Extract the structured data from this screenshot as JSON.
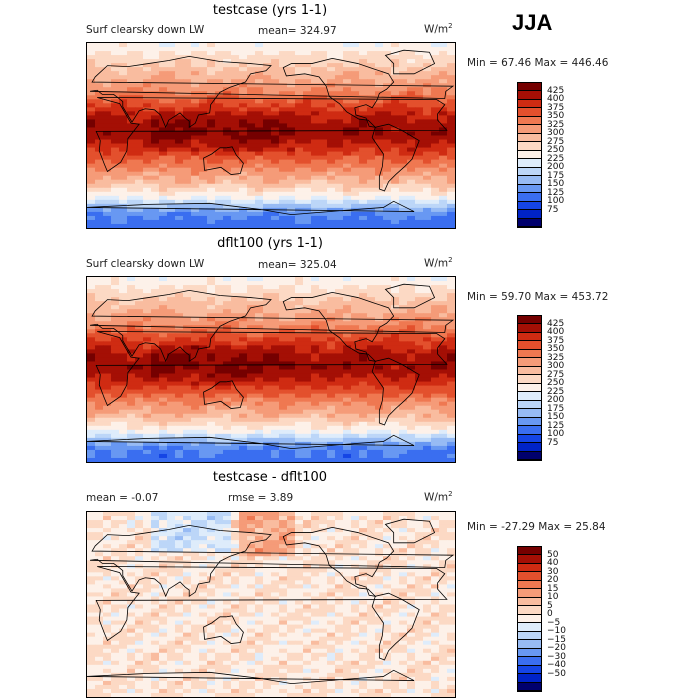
{
  "season": "JJA",
  "colors": {
    "abs_scale": [
      "#00006d",
      "#0023c7",
      "#1545e5",
      "#3a6ef0",
      "#6898f2",
      "#97bbf4",
      "#bcd6f8",
      "#deecfb",
      "#fdf1e9",
      "#fcd9c4",
      "#f9bc9f",
      "#f59b78",
      "#ef7851",
      "#e3502d",
      "#cf2b12",
      "#a40f05",
      "#750000"
    ],
    "diff_scale": [
      "#00006d",
      "#0023c7",
      "#1545e5",
      "#3a6ef0",
      "#6898f2",
      "#97bbf4",
      "#bcd6f8",
      "#deecfb",
      "#fdf1e9",
      "#fcd9c4",
      "#f9bc9f",
      "#f59b78",
      "#ef7851",
      "#e3502d",
      "#cf2b12",
      "#a40f05",
      "#750000"
    ],
    "land_outline": "#000000"
  },
  "panels": [
    {
      "title": "testcase (yrs 1-1)",
      "variable": "Surf clearsky down LW",
      "stat": "mean=  324.97",
      "units_base": "W/m",
      "units_exp": "2",
      "minmax": "Min =  67.46 Max = 446.46",
      "kind": "abs",
      "chart_data": {
        "type": "heatmap",
        "title": "testcase (yrs 1-1)",
        "variable": "Surf clearsky down LW",
        "units": "W/m2",
        "mean": 324.97,
        "min": 67.46,
        "max": 446.46,
        "levels": [
          75,
          100,
          125,
          150,
          175,
          200,
          225,
          250,
          275,
          300,
          325,
          350,
          375,
          400,
          425
        ],
        "latitude_profile": [
          [
            90,
            230
          ],
          [
            75,
            260
          ],
          [
            60,
            290
          ],
          [
            45,
            320
          ],
          [
            30,
            370
          ],
          [
            15,
            410
          ],
          [
            0,
            420
          ],
          [
            -15,
            380
          ],
          [
            -30,
            330
          ],
          [
            -45,
            290
          ],
          [
            -60,
            230
          ],
          [
            -75,
            130
          ],
          [
            -90,
            110
          ]
        ]
      }
    },
    {
      "title": "dflt100 (yrs 1-1)",
      "variable": "Surf clearsky down LW",
      "stat": "mean=  325.04",
      "units_base": "W/m",
      "units_exp": "2",
      "minmax": "Min =  59.70 Max = 453.72",
      "kind": "abs",
      "chart_data": {
        "type": "heatmap",
        "title": "dflt100 (yrs 1-1)",
        "variable": "Surf clearsky down LW",
        "units": "W/m2",
        "mean": 325.04,
        "min": 59.7,
        "max": 453.72,
        "levels": [
          75,
          100,
          125,
          150,
          175,
          200,
          225,
          250,
          275,
          300,
          325,
          350,
          375,
          400,
          425
        ],
        "latitude_profile": [
          [
            90,
            230
          ],
          [
            75,
            260
          ],
          [
            60,
            290
          ],
          [
            45,
            320
          ],
          [
            30,
            370
          ],
          [
            15,
            410
          ],
          [
            0,
            420
          ],
          [
            -15,
            380
          ],
          [
            -30,
            330
          ],
          [
            -45,
            290
          ],
          [
            -60,
            230
          ],
          [
            -75,
            130
          ],
          [
            -90,
            110
          ]
        ]
      }
    },
    {
      "title": "testcase - dflt100",
      "stat_mean": "mean =   -0.07",
      "stat_rmse": "rmse =    3.89",
      "units_base": "W/m",
      "units_exp": "2",
      "minmax": "Min = -27.29 Max =  25.84",
      "kind": "diff",
      "chart_data": {
        "type": "heatmap",
        "title": "testcase - dflt100",
        "units": "W/m2",
        "mean": -0.07,
        "rmse": 3.89,
        "min": -27.29,
        "max": 25.84,
        "levels": [
          -50,
          -40,
          -30,
          -20,
          -15,
          -10,
          -5,
          0,
          5,
          10,
          15,
          20,
          30,
          40,
          50
        ]
      }
    }
  ],
  "colorbar_abs": [
    "425",
    "400",
    "375",
    "350",
    "325",
    "300",
    "275",
    "250",
    "225",
    "200",
    "175",
    "150",
    "125",
    "100",
    "75"
  ],
  "colorbar_diff": [
    "50",
    "40",
    "30",
    "20",
    "15",
    "10",
    "5",
    "0",
    "−5",
    "−10",
    "−15",
    "−20",
    "−30",
    "−40",
    "−50"
  ]
}
